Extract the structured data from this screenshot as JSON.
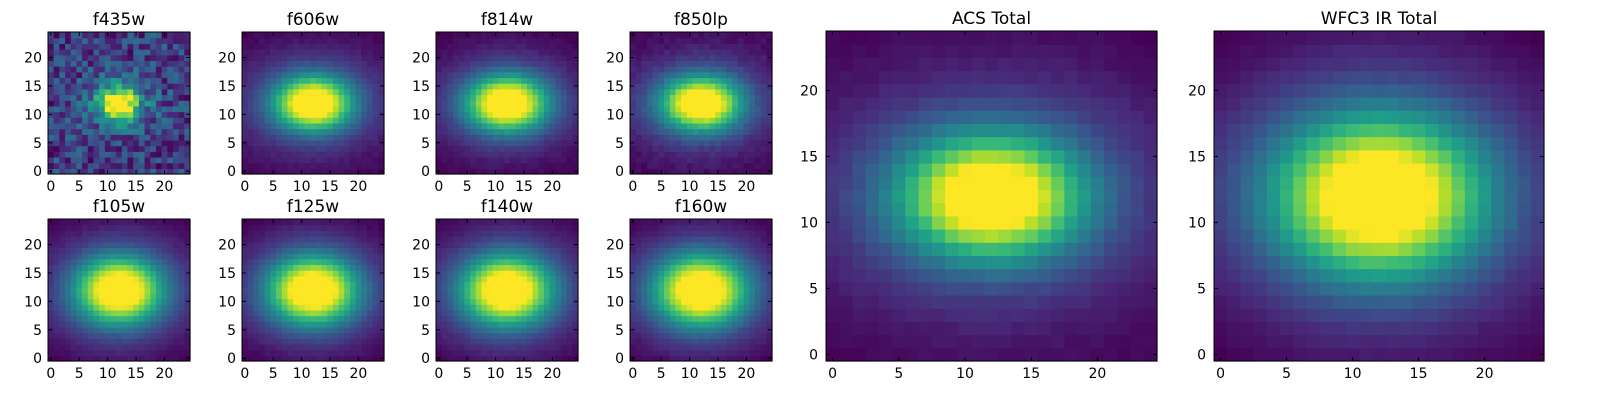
{
  "figure": {
    "background": "#ffffff"
  },
  "colormap": {
    "name": "viridis",
    "stops": [
      "#440154",
      "#482878",
      "#3e4989",
      "#31688e",
      "#26828e",
      "#1f9e89",
      "#35b779",
      "#6ece58",
      "#b5de2b",
      "#fde725"
    ]
  },
  "chart_data": [
    {
      "type": "heatmap",
      "title": "f435w",
      "grid_size": [
        25,
        25
      ],
      "xlim": [
        0,
        24
      ],
      "ylim": [
        0,
        24
      ],
      "xticks": [
        0,
        5,
        10,
        15,
        20
      ],
      "yticks": [
        0,
        5,
        10,
        15,
        20
      ],
      "peak": [
        12,
        12
      ],
      "sigma": [
        2.2,
        1.8
      ],
      "background": 0.35,
      "noise": 0.22,
      "grid": false
    },
    {
      "type": "heatmap",
      "title": "f606w",
      "grid_size": [
        25,
        25
      ],
      "xlim": [
        0,
        24
      ],
      "ylim": [
        0,
        24
      ],
      "xticks": [
        0,
        5,
        10,
        15,
        20
      ],
      "yticks": [
        0,
        5,
        10,
        15,
        20
      ],
      "peak": [
        12,
        12
      ],
      "sigma": [
        4.6,
        3.2
      ],
      "background": 0.05,
      "noise": 0.02,
      "grid": false
    },
    {
      "type": "heatmap",
      "title": "f814w",
      "grid_size": [
        25,
        25
      ],
      "xlim": [
        0,
        24
      ],
      "ylim": [
        0,
        24
      ],
      "xticks": [
        0,
        5,
        10,
        15,
        20
      ],
      "yticks": [
        0,
        5,
        10,
        15,
        20
      ],
      "peak": [
        12,
        12
      ],
      "sigma": [
        4.8,
        3.3
      ],
      "background": 0.05,
      "noise": 0.02,
      "grid": false
    },
    {
      "type": "heatmap",
      "title": "f850lp",
      "grid_size": [
        25,
        25
      ],
      "xlim": [
        0,
        24
      ],
      "ylim": [
        0,
        24
      ],
      "xticks": [
        0,
        5,
        10,
        15,
        20
      ],
      "yticks": [
        0,
        5,
        10,
        15,
        20
      ],
      "peak": [
        12,
        12
      ],
      "sigma": [
        4.7,
        3.2
      ],
      "background": 0.04,
      "noise": 0.03,
      "grid": false
    },
    {
      "type": "heatmap",
      "title": "f105w",
      "grid_size": [
        25,
        25
      ],
      "xlim": [
        0,
        24
      ],
      "ylim": [
        0,
        24
      ],
      "xticks": [
        0,
        5,
        10,
        15,
        20
      ],
      "yticks": [
        0,
        5,
        10,
        15,
        20
      ],
      "peak": [
        12,
        12
      ],
      "sigma": [
        5.2,
        4.0
      ],
      "background": 0.06,
      "noise": 0.015,
      "grid": false
    },
    {
      "type": "heatmap",
      "title": "f125w",
      "grid_size": [
        25,
        25
      ],
      "xlim": [
        0,
        24
      ],
      "ylim": [
        0,
        24
      ],
      "xticks": [
        0,
        5,
        10,
        15,
        20
      ],
      "yticks": [
        0,
        5,
        10,
        15,
        20
      ],
      "peak": [
        12,
        12
      ],
      "sigma": [
        5.4,
        4.1
      ],
      "background": 0.06,
      "noise": 0.015,
      "grid": false
    },
    {
      "type": "heatmap",
      "title": "f140w",
      "grid_size": [
        25,
        25
      ],
      "xlim": [
        0,
        24
      ],
      "ylim": [
        0,
        24
      ],
      "xticks": [
        0,
        5,
        10,
        15,
        20
      ],
      "yticks": [
        0,
        5,
        10,
        15,
        20
      ],
      "peak": [
        12,
        12
      ],
      "sigma": [
        5.5,
        4.2
      ],
      "background": 0.06,
      "noise": 0.015,
      "grid": false
    },
    {
      "type": "heatmap",
      "title": "f160w",
      "grid_size": [
        25,
        25
      ],
      "xlim": [
        0,
        24
      ],
      "ylim": [
        0,
        24
      ],
      "xticks": [
        0,
        5,
        10,
        15,
        20
      ],
      "yticks": [
        0,
        5,
        10,
        15,
        20
      ],
      "peak": [
        12,
        12
      ],
      "sigma": [
        5.6,
        4.3
      ],
      "background": 0.06,
      "noise": 0.015,
      "grid": false
    },
    {
      "type": "heatmap",
      "title": "ACS Total",
      "grid_size": [
        25,
        25
      ],
      "xlim": [
        0,
        24
      ],
      "ylim": [
        0,
        24
      ],
      "xticks": [
        0,
        5,
        10,
        15,
        20
      ],
      "yticks": [
        0,
        5,
        10,
        15,
        20
      ],
      "peak": [
        12,
        12
      ],
      "sigma": [
        4.7,
        3.2
      ],
      "background": 0.05,
      "noise": 0.015,
      "grid": false
    },
    {
      "type": "heatmap",
      "title": "WFC3 IR Total",
      "grid_size": [
        25,
        25
      ],
      "xlim": [
        0,
        24
      ],
      "ylim": [
        0,
        24
      ],
      "xticks": [
        0,
        5,
        10,
        15,
        20
      ],
      "yticks": [
        0,
        5,
        10,
        15,
        20
      ],
      "peak": [
        12,
        12
      ],
      "sigma": [
        5.5,
        4.2
      ],
      "background": 0.06,
      "noise": 0.01,
      "grid": false
    }
  ]
}
